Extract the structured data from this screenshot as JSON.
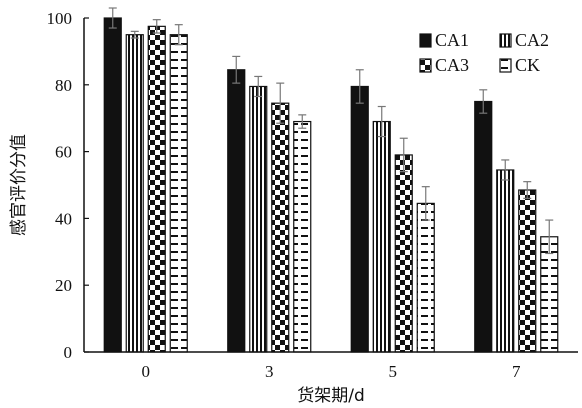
{
  "chart_data": {
    "type": "bar",
    "xlabel": "货架期/d",
    "ylabel": "感官评价分值",
    "categories": [
      "0",
      "3",
      "5",
      "7"
    ],
    "ylim": [
      0,
      100
    ],
    "yticks": [
      0,
      20,
      40,
      60,
      80,
      100
    ],
    "grid": false,
    "legend_position": "top-right",
    "series": [
      {
        "name": "CA1",
        "pattern": "solid-black",
        "values": [
          100,
          84.5,
          79.5,
          75
        ],
        "errors": [
          3,
          4,
          5,
          3.5
        ]
      },
      {
        "name": "CA2",
        "pattern": "vertical-stripes",
        "values": [
          95,
          79.5,
          69,
          54.5
        ],
        "errors": [
          1,
          3,
          4.5,
          3
        ]
      },
      {
        "name": "CA3",
        "pattern": "checker",
        "values": [
          97.5,
          74.5,
          59,
          48.5
        ],
        "errors": [
          2,
          6,
          5,
          2.5
        ]
      },
      {
        "name": "CK",
        "pattern": "horizontal-dashes",
        "values": [
          95,
          69,
          44.5,
          34.5
        ],
        "errors": [
          3,
          2,
          5,
          5
        ]
      }
    ]
  }
}
